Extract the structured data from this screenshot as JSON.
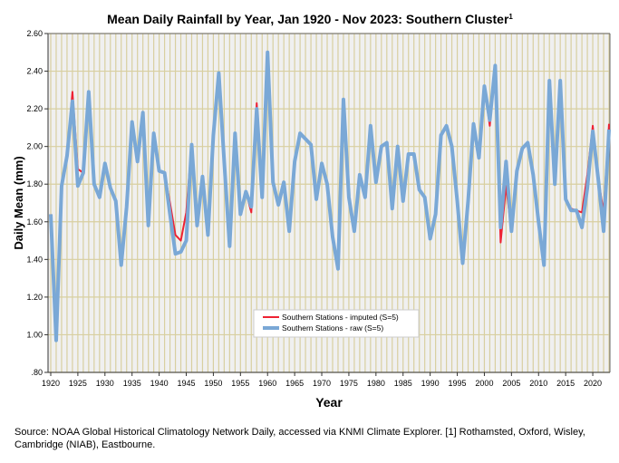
{
  "chart_data": {
    "type": "line",
    "title": "Mean Daily Rainfall by Year, Jan 1920 - Nov 2023: Southern Cluster",
    "title_superscript": "1",
    "xlabel": "Year",
    "ylabel": "Daily Mean (mm)",
    "ylim": [
      0.8,
      2.6
    ],
    "xlim": [
      1920,
      2023
    ],
    "yticks": [
      "2.60",
      "2.40",
      "2.20",
      "2.00",
      "1.80",
      "1.60",
      "1.40",
      "1.20",
      "1.00",
      ".80"
    ],
    "yticks_values": [
      2.6,
      2.4,
      2.2,
      2.0,
      1.8,
      1.6,
      1.4,
      1.2,
      1.0,
      0.8
    ],
    "xticks": [
      "1920",
      "1925",
      "1930",
      "1935",
      "1940",
      "1945",
      "1950",
      "1955",
      "1960",
      "1965",
      "1970",
      "1975",
      "1980",
      "1985",
      "1990",
      "1995",
      "2000",
      "2005",
      "2010",
      "2015",
      "2020"
    ],
    "grid": true,
    "legend_position": "bottom-center",
    "x_start": 1920,
    "series": [
      {
        "name": "Southern Stations - imputed (S=5)",
        "color": "#ee2233",
        "values": [
          1.64,
          0.97,
          1.79,
          1.95,
          2.29,
          1.88,
          1.86,
          2.29,
          1.8,
          1.73,
          1.91,
          1.78,
          1.71,
          1.37,
          1.68,
          2.13,
          1.92,
          2.18,
          1.58,
          2.07,
          1.87,
          1.86,
          1.7,
          1.53,
          1.5,
          1.65,
          2.01,
          1.58,
          1.84,
          1.53,
          2.06,
          2.39,
          1.92,
          1.47,
          2.07,
          1.64,
          1.76,
          1.65,
          2.23,
          1.73,
          2.5,
          1.81,
          1.69,
          1.81,
          1.55,
          1.92,
          2.07,
          2.04,
          2.01,
          1.72,
          1.91,
          1.8,
          1.52,
          1.35,
          2.25,
          1.73,
          1.55,
          1.85,
          1.73,
          2.11,
          1.81,
          2.0,
          2.02,
          1.67,
          2.0,
          1.71,
          1.96,
          1.96,
          1.77,
          1.73,
          1.51,
          1.64,
          2.06,
          2.11,
          2.0,
          1.71,
          1.38,
          1.71,
          2.12,
          1.94,
          2.32,
          2.11,
          2.43,
          1.49,
          1.79,
          1.55,
          1.87,
          1.99,
          2.02,
          1.85,
          1.6,
          1.37,
          2.35,
          1.8,
          2.35,
          1.72,
          1.67,
          1.66,
          1.65,
          1.85,
          2.11,
          1.83,
          1.65,
          2.12
        ]
      },
      {
        "name": "Southern Stations - raw (S=5)",
        "color": "#7aa8d6",
        "values": [
          1.64,
          0.97,
          1.79,
          1.95,
          2.24,
          1.79,
          1.86,
          2.29,
          1.8,
          1.73,
          1.91,
          1.78,
          1.71,
          1.37,
          1.68,
          2.13,
          1.92,
          2.18,
          1.58,
          2.07,
          1.87,
          1.86,
          1.64,
          1.43,
          1.44,
          1.5,
          2.01,
          1.58,
          1.84,
          1.53,
          2.06,
          2.39,
          1.92,
          1.47,
          2.07,
          1.64,
          1.76,
          1.68,
          2.2,
          1.73,
          2.5,
          1.81,
          1.69,
          1.81,
          1.55,
          1.92,
          2.07,
          2.04,
          2.01,
          1.72,
          1.91,
          1.8,
          1.52,
          1.35,
          2.25,
          1.73,
          1.55,
          1.85,
          1.73,
          2.11,
          1.81,
          2.0,
          2.02,
          1.67,
          2.0,
          1.71,
          1.96,
          1.96,
          1.77,
          1.73,
          1.51,
          1.64,
          2.06,
          2.11,
          2.0,
          1.71,
          1.38,
          1.71,
          2.12,
          1.94,
          2.32,
          2.14,
          2.43,
          1.57,
          1.92,
          1.55,
          1.87,
          1.99,
          2.02,
          1.85,
          1.6,
          1.37,
          2.35,
          1.8,
          2.35,
          1.72,
          1.66,
          1.66,
          1.57,
          1.78,
          2.08,
          1.83,
          1.55,
          2.09
        ]
      }
    ]
  },
  "source": "Source: NOAA Global Historical Climatology Network Daily, accessed via KNMI Climate Explorer. [1] Rothamsted, Oxford, Wisley, Cambridge (NIAB), Eastbourne."
}
